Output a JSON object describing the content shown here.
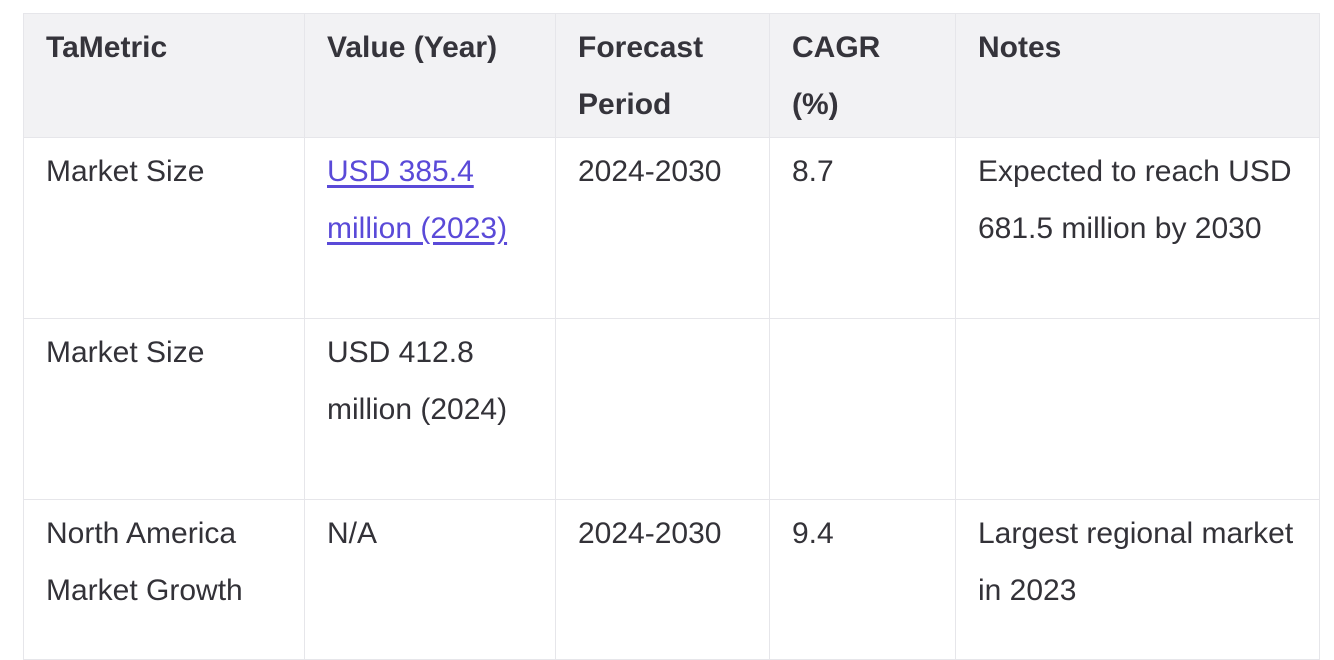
{
  "table": {
    "headers": [
      "TaMetric",
      "Value (Year)",
      "Forecast Period",
      "CAGR (%)",
      "Notes"
    ],
    "rows": [
      {
        "metric": "Market Size",
        "value": "USD 385.4 million (2023)",
        "period": "2024-2030",
        "cagr": "8.7",
        "notes": "Expected to reach USD 681.5 million by 2030"
      },
      {
        "metric": "Market Size",
        "value": "USD 412.8 million (2024)",
        "period": "",
        "cagr": "",
        "notes": ""
      },
      {
        "metric": "North America Market Growth",
        "value": "N/A",
        "period": "2024-2030",
        "cagr": "9.4",
        "notes": "Largest regional market in 2023"
      }
    ]
  },
  "colors": {
    "link": "#5a4ad8",
    "header_bg": "#f2f2f4",
    "border": "#e6e6ea",
    "text": "#333238"
  }
}
